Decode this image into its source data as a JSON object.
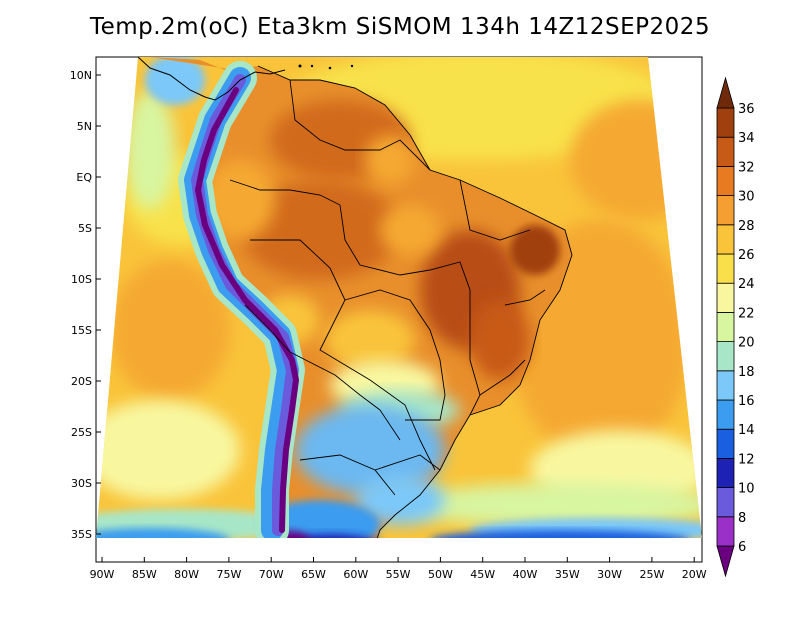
{
  "title": "Temp.2m(oC) Eta3km SiSMOM 134h 14Z12SEP2025",
  "latitude_labels": [
    "10N",
    "5N",
    "EQ",
    "5S",
    "10S",
    "15S",
    "20S",
    "25S",
    "30S",
    "35S"
  ],
  "longitude_labels": [
    "90W",
    "85W",
    "80W",
    "75W",
    "70W",
    "65W",
    "60W",
    "55W",
    "50W",
    "45W",
    "40W",
    "35W",
    "30W",
    "25W",
    "20W"
  ],
  "colorbar": {
    "levels": [
      "6",
      "8",
      "10",
      "12",
      "14",
      "16",
      "18",
      "20",
      "22",
      "24",
      "26",
      "28",
      "30",
      "32",
      "34",
      "36"
    ],
    "colors": [
      "#6a0080",
      "#9b30c8",
      "#6a5adc",
      "#1e22b4",
      "#1a5fe0",
      "#3b9cf0",
      "#7cc8f8",
      "#a8e6c8",
      "#d8f5a0",
      "#f8f7a0",
      "#f9e04a",
      "#f9c43a",
      "#f59e32",
      "#e87a22",
      "#c85a18",
      "#a0400f",
      "#6e2a0a"
    ]
  }
}
